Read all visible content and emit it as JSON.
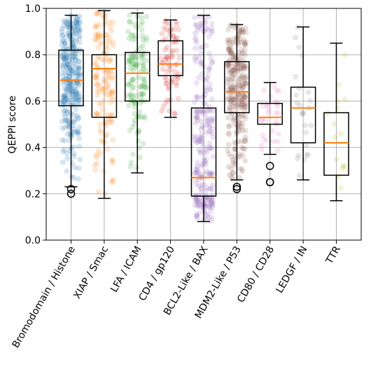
{
  "chart_data": {
    "type": "box",
    "title": "",
    "xlabel": "",
    "ylabel": "QEPPI score",
    "ylim": [
      0.0,
      1.0
    ],
    "yticks": [
      "0.0",
      "0.2",
      "0.4",
      "0.6",
      "0.8",
      "1.0"
    ],
    "grid": true,
    "categories": [
      "Bromodomain / Histone",
      "XIAP / Smac",
      "LFA / ICAM",
      "CD4 / gp120",
      "BCL2-Like / BAX",
      "MDM2-Like / P53",
      "CD80 / CD28",
      "LEDGF / IN",
      "TTR"
    ],
    "colors": [
      "#1f77b4",
      "#ff7f0e",
      "#2ca02c",
      "#d62728",
      "#9467bd",
      "#8c564b",
      "#e377c2",
      "#7f7f7f",
      "#bcbd22"
    ],
    "median_color": "#ff7f0e",
    "boxes": [
      {
        "q1": 0.58,
        "median": 0.69,
        "q3": 0.82,
        "whisker_low": 0.23,
        "whisker_high": 0.97,
        "outliers": [
          0.2,
          0.22
        ],
        "n_points": 300
      },
      {
        "q1": 0.53,
        "median": 0.74,
        "q3": 0.8,
        "whisker_low": 0.18,
        "whisker_high": 0.99,
        "outliers": [],
        "n_points": 140
      },
      {
        "q1": 0.6,
        "median": 0.72,
        "q3": 0.81,
        "whisker_low": 0.29,
        "whisker_high": 0.98,
        "outliers": [],
        "n_points": 120
      },
      {
        "q1": 0.71,
        "median": 0.76,
        "q3": 0.86,
        "whisker_low": 0.53,
        "whisker_high": 0.95,
        "outliers": [],
        "n_points": 70
      },
      {
        "q1": 0.19,
        "median": 0.27,
        "q3": 0.57,
        "whisker_low": 0.08,
        "whisker_high": 0.97,
        "outliers": [],
        "n_points": 250
      },
      {
        "q1": 0.55,
        "median": 0.64,
        "q3": 0.77,
        "whisker_low": 0.26,
        "whisker_high": 0.93,
        "outliers": [
          0.22,
          0.23
        ],
        "n_points": 280
      },
      {
        "q1": 0.5,
        "median": 0.53,
        "q3": 0.59,
        "whisker_low": 0.37,
        "whisker_high": 0.68,
        "outliers": [
          0.25,
          0.25,
          0.32
        ],
        "n_points": 30
      },
      {
        "q1": 0.42,
        "median": 0.57,
        "q3": 0.66,
        "whisker_low": 0.26,
        "whisker_high": 0.92,
        "outliers": [],
        "n_points": 25
      },
      {
        "q1": 0.28,
        "median": 0.42,
        "q3": 0.55,
        "whisker_low": 0.17,
        "whisker_high": 0.85,
        "outliers": [],
        "n_points": 15
      }
    ]
  }
}
